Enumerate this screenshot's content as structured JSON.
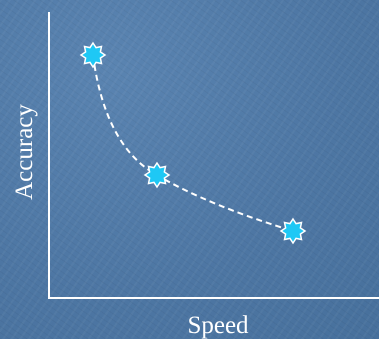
{
  "axes": {
    "x_label": "Speed",
    "y_label": "Accuracy"
  },
  "diagram": {
    "curve_style": "dashed",
    "marker_shape": "starburst",
    "marker_count": 3
  },
  "colors": {
    "background": "#4f78a6",
    "axis": "#ffffff",
    "curve": "#ffffff",
    "marker_fill": "#1ec8f5",
    "marker_stroke": "#ffffff"
  }
}
